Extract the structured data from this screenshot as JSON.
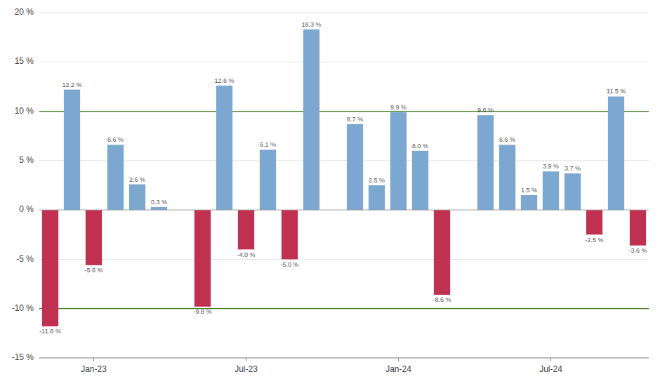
{
  "chart_data": {
    "type": "bar",
    "categories": [
      null,
      null,
      "Jan-23",
      null,
      null,
      null,
      null,
      null,
      null,
      "Jul-23",
      null,
      null,
      null,
      null,
      null,
      null,
      "Jan-24",
      null,
      null,
      null,
      null,
      null,
      null,
      "Jul-24",
      null,
      null,
      null,
      null
    ],
    "values": [
      -11.8,
      12.2,
      -5.6,
      6.6,
      2.6,
      0.3,
      null,
      -9.8,
      12.6,
      -4.0,
      6.1,
      -5.0,
      18.3,
      null,
      8.7,
      2.5,
      9.9,
      6.0,
      -8.6,
      null,
      9.6,
      6.6,
      1.5,
      3.9,
      3.7,
      -2.5,
      11.5,
      -3.6
    ],
    "value_labels": [
      "-11.8 %",
      "12.2 %",
      "-5.6 %",
      "6.6 %",
      "2.6 %",
      "0.3 %",
      null,
      "-9.8 %",
      "12.6 %",
      "-4.0 %",
      "6.1 %",
      "-5.0 %",
      "18.3 %",
      null,
      "8.7 %",
      "2.5 %",
      "9.9 %",
      "6.0 %",
      "-8.6 %",
      null,
      "9.6 %",
      "6.6 %",
      "1.5 %",
      "3.9 %",
      "3.7 %",
      "-2.5 %",
      "11.5 %",
      "-3.6 %"
    ],
    "colors": [
      "#c03050",
      "#7ba7d1",
      "#c03050",
      "#7ba7d1",
      "#7ba7d1",
      "#7ba7d1",
      null,
      "#c03050",
      "#7ba7d1",
      "#c03050",
      "#7ba7d1",
      "#c03050",
      "#7ba7d1",
      null,
      "#7ba7d1",
      "#7ba7d1",
      "#7ba7d1",
      "#7ba7d1",
      "#c03050",
      null,
      "#7ba7d1",
      "#7ba7d1",
      "#7ba7d1",
      "#7ba7d1",
      "#7ba7d1",
      "#c03050",
      "#7ba7d1",
      "#c03050"
    ],
    "data_labels": true,
    "ylim": [
      -15,
      20
    ],
    "yticks": [
      {
        "value": -15,
        "label": "-15 %"
      },
      {
        "value": -10,
        "label": "-10 %"
      },
      {
        "value": -5,
        "label": "-5 %"
      },
      {
        "value": 0,
        "label": "0 %"
      },
      {
        "value": 5,
        "label": "5 %"
      },
      {
        "value": 10,
        "label": "10 %"
      },
      {
        "value": 15,
        "label": "15 %"
      },
      {
        "value": 20,
        "label": "20 %"
      }
    ],
    "grid": true,
    "reference_lines": [
      {
        "value": 10,
        "color": "#3a7a1a"
      },
      {
        "value": -10,
        "color": "#3a7a1a"
      }
    ]
  }
}
